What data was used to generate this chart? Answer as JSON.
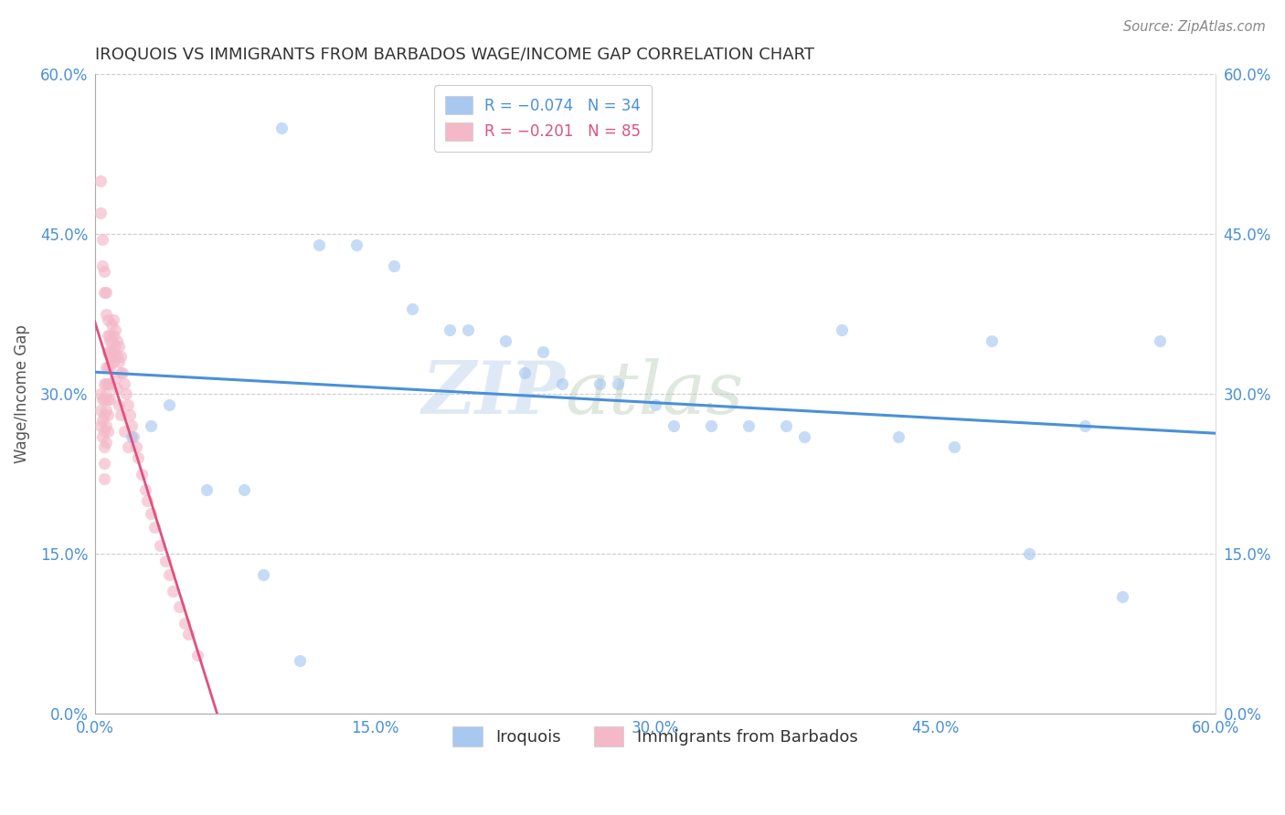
{
  "title": "IROQUOIS VS IMMIGRANTS FROM BARBADOS WAGE/INCOME GAP CORRELATION CHART",
  "source": "Source: ZipAtlas.com",
  "ylabel": "Wage/Income Gap",
  "xlim": [
    0.0,
    0.6
  ],
  "ylim": [
    0.0,
    0.6
  ],
  "xtick_vals": [
    0.0,
    0.15,
    0.3,
    0.45,
    0.6
  ],
  "ytick_vals": [
    0.0,
    0.15,
    0.3,
    0.45,
    0.6
  ],
  "legend_label1": "R = −0.074   N = 34",
  "legend_label2": "R = −0.201   N = 85",
  "legend_color1": "#a8c8f0",
  "legend_color2": "#f4b8c8",
  "iroquois_color": "#a8c8f0",
  "barbados_color": "#f4b8c8",
  "iroquois_line_color": "#4a90d9",
  "barbados_line_color": "#e05080",
  "watermark_zip": "ZIP",
  "watermark_atlas": "atlas",
  "scatter_alpha": 0.65,
  "marker_size": 90,
  "iroquois_x": [
    0.04,
    0.1,
    0.12,
    0.14,
    0.16,
    0.17,
    0.19,
    0.2,
    0.22,
    0.23,
    0.24,
    0.25,
    0.27,
    0.28,
    0.3,
    0.31,
    0.33,
    0.35,
    0.37,
    0.38,
    0.4,
    0.43,
    0.46,
    0.48,
    0.5,
    0.53,
    0.55,
    0.57,
    0.02,
    0.03,
    0.06,
    0.08,
    0.09,
    0.11
  ],
  "iroquois_y": [
    0.29,
    0.55,
    0.44,
    0.44,
    0.42,
    0.38,
    0.36,
    0.36,
    0.35,
    0.32,
    0.34,
    0.31,
    0.31,
    0.31,
    0.29,
    0.27,
    0.27,
    0.27,
    0.27,
    0.26,
    0.36,
    0.26,
    0.25,
    0.35,
    0.15,
    0.27,
    0.11,
    0.35,
    0.26,
    0.27,
    0.21,
    0.21,
    0.13,
    0.05
  ],
  "barbados_x": [
    0.003,
    0.003,
    0.003,
    0.004,
    0.004,
    0.004,
    0.005,
    0.005,
    0.005,
    0.005,
    0.005,
    0.005,
    0.005,
    0.006,
    0.006,
    0.006,
    0.006,
    0.006,
    0.006,
    0.007,
    0.007,
    0.007,
    0.007,
    0.007,
    0.007,
    0.008,
    0.008,
    0.008,
    0.008,
    0.008,
    0.009,
    0.009,
    0.009,
    0.01,
    0.01,
    0.01,
    0.011,
    0.011,
    0.012,
    0.012,
    0.013,
    0.013,
    0.014,
    0.014,
    0.015,
    0.016,
    0.017,
    0.018,
    0.019,
    0.02,
    0.021,
    0.022,
    0.023,
    0.025,
    0.027,
    0.028,
    0.03,
    0.032,
    0.035,
    0.038,
    0.04,
    0.042,
    0.045,
    0.048,
    0.05,
    0.055,
    0.003,
    0.003,
    0.004,
    0.004,
    0.005,
    0.005,
    0.006,
    0.006,
    0.007,
    0.007,
    0.008,
    0.009,
    0.01,
    0.011,
    0.012,
    0.013,
    0.014,
    0.016,
    0.018
  ],
  "barbados_y": [
    0.3,
    0.285,
    0.27,
    0.295,
    0.275,
    0.26,
    0.31,
    0.295,
    0.28,
    0.265,
    0.25,
    0.235,
    0.22,
    0.325,
    0.31,
    0.3,
    0.285,
    0.27,
    0.255,
    0.34,
    0.325,
    0.31,
    0.295,
    0.28,
    0.265,
    0.355,
    0.34,
    0.325,
    0.31,
    0.295,
    0.365,
    0.35,
    0.335,
    0.37,
    0.355,
    0.34,
    0.36,
    0.345,
    0.35,
    0.335,
    0.345,
    0.33,
    0.335,
    0.32,
    0.32,
    0.31,
    0.3,
    0.29,
    0.28,
    0.27,
    0.26,
    0.25,
    0.24,
    0.225,
    0.21,
    0.2,
    0.188,
    0.175,
    0.158,
    0.143,
    0.13,
    0.115,
    0.1,
    0.085,
    0.075,
    0.055,
    0.5,
    0.47,
    0.445,
    0.42,
    0.415,
    0.395,
    0.395,
    0.375,
    0.37,
    0.355,
    0.35,
    0.335,
    0.33,
    0.315,
    0.305,
    0.29,
    0.28,
    0.265,
    0.25
  ],
  "background_color": "#ffffff",
  "grid_color": "#cccccc"
}
